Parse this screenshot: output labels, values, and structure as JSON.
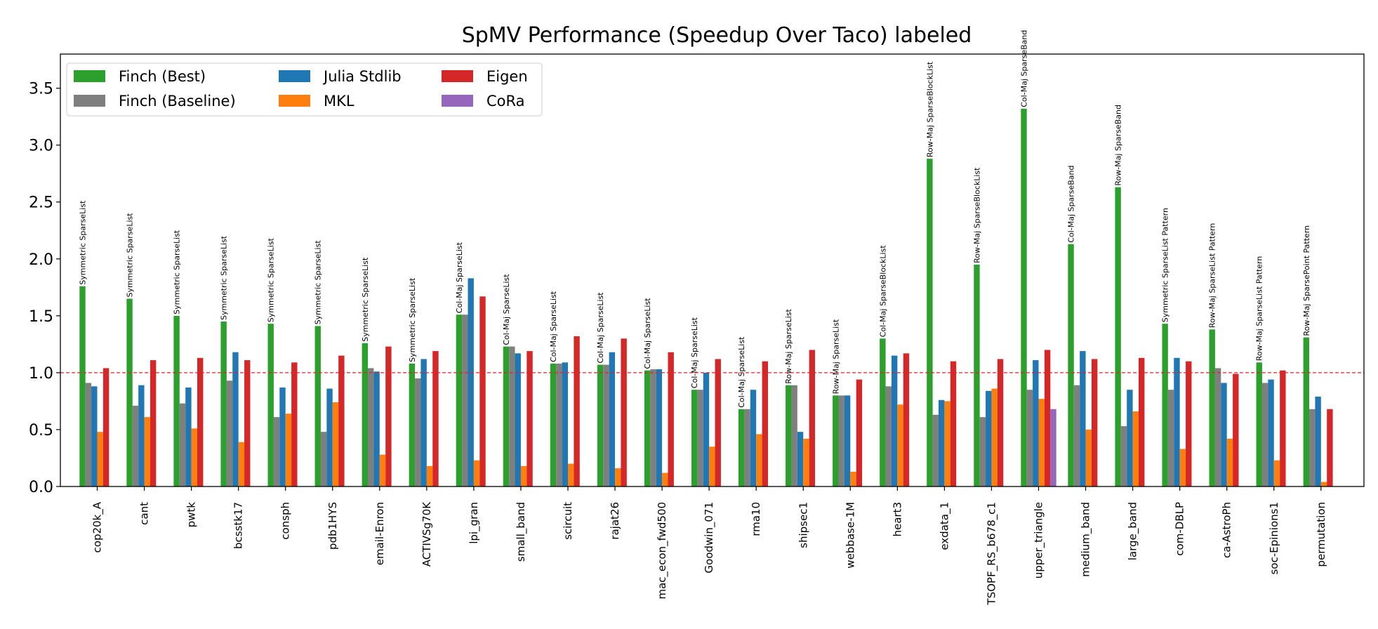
{
  "chart_data": {
    "type": "bar",
    "title": "SpMV Performance (Speedup Over Taco) labeled",
    "xlabel": "",
    "ylabel": "",
    "ylim": [
      0,
      3.8
    ],
    "yticks": [
      "0.0",
      "0.5",
      "1.0",
      "1.5",
      "2.0",
      "2.5",
      "3.0",
      "3.5"
    ],
    "reference_line": 1.0,
    "legend_position": "top-left",
    "grid": false,
    "categories": [
      "cop20k_A",
      "cant",
      "pwtk",
      "bcsstk17",
      "consph",
      "pdb1HYS",
      "email-Enron",
      "ACTIVSg70K",
      "lpi_gran",
      "small_band",
      "scircuit",
      "rajat26",
      "mac_econ_fwd500",
      "Goodwin_071",
      "rma10",
      "shipsec1",
      "webbase-1M",
      "heart3",
      "exdata_1",
      "TSOPF_RS_b678_c1",
      "upper_triangle",
      "medium_band",
      "large_band",
      "com-DBLP",
      "ca-AstroPh",
      "soc-Epinions1",
      "permutation"
    ],
    "series": [
      {
        "name": "Finch (Best)",
        "color": "#2ca02c",
        "values": [
          1.76,
          1.65,
          1.5,
          1.45,
          1.43,
          1.41,
          1.26,
          1.08,
          1.51,
          1.23,
          1.08,
          1.07,
          1.02,
          0.85,
          0.68,
          0.89,
          0.8,
          1.3,
          2.88,
          1.95,
          3.32,
          2.13,
          2.63,
          1.43,
          1.38,
          1.09,
          1.31
        ]
      },
      {
        "name": "Finch (Baseline)",
        "color": "#7f7f7f",
        "values": [
          0.91,
          0.71,
          0.73,
          0.93,
          0.61,
          0.48,
          1.04,
          0.95,
          1.51,
          1.23,
          1.08,
          1.07,
          1.03,
          0.85,
          0.68,
          0.89,
          0.8,
          0.88,
          0.63,
          0.61,
          0.85,
          0.89,
          0.53,
          0.85,
          1.04,
          0.91,
          0.68
        ]
      },
      {
        "name": "Julia Stdlib",
        "color": "#1f77b4",
        "values": [
          0.88,
          0.89,
          0.87,
          1.18,
          0.87,
          0.86,
          1.01,
          1.12,
          1.83,
          1.17,
          1.09,
          1.18,
          1.03,
          1.0,
          0.85,
          0.48,
          0.8,
          1.15,
          0.76,
          0.84,
          1.11,
          1.19,
          0.85,
          1.13,
          0.91,
          0.94,
          0.79
        ]
      },
      {
        "name": "MKL",
        "color": "#ff7f0e",
        "values": [
          0.48,
          0.61,
          0.51,
          0.39,
          0.64,
          0.74,
          0.28,
          0.18,
          0.23,
          0.18,
          0.2,
          0.16,
          0.12,
          0.35,
          0.46,
          0.42,
          0.13,
          0.72,
          0.75,
          0.86,
          0.77,
          0.5,
          0.66,
          0.33,
          0.42,
          0.23,
          0.04
        ]
      },
      {
        "name": "Eigen",
        "color": "#d62728",
        "values": [
          1.04,
          1.11,
          1.13,
          1.11,
          1.09,
          1.15,
          1.23,
          1.19,
          1.67,
          1.19,
          1.32,
          1.3,
          1.18,
          1.12,
          1.1,
          1.2,
          0.94,
          1.17,
          1.1,
          1.12,
          1.2,
          1.12,
          1.13,
          1.1,
          0.99,
          1.02,
          0.68
        ]
      },
      {
        "name": "CoRa",
        "color": "#9467bd",
        "values": [
          0,
          0,
          0,
          0,
          0,
          0,
          0,
          0,
          0,
          0,
          0,
          0,
          0,
          0,
          0,
          0,
          0,
          0,
          0,
          0,
          0.68,
          0,
          0,
          0,
          0,
          0,
          0
        ]
      }
    ],
    "bar_labels": [
      "Symmetric SparseList",
      "Symmetric SparseList",
      "Symmetric SparseList",
      "Symmetric SparseList",
      "Symmetric SparseList",
      "Symmetric SparseList",
      "Symmetric SparseList",
      "Symmetric SparseList",
      "Col-Maj SparseList",
      "Col-Maj SparseList",
      "Col-Maj SparseList",
      "Col-Maj SparseList",
      "Col-Maj SparseList",
      "Col-Maj SparseList",
      "Col-Maj SparseList",
      "Row-Maj SparseList",
      "Row-Maj SparseList",
      "Col-Maj SparseBlockList",
      "Row-Maj SparseBlockList",
      "Row-Maj SparseBlockList",
      "Col-Maj SparseBand",
      "Col-Maj SparseBand",
      "Row-Maj SparseBand",
      "Symmetric SparseList Pattern",
      "Row-Maj SparseList Pattern",
      "Row-Maj SparseList Pattern",
      "Row-Maj SparsePoint Pattern"
    ]
  }
}
